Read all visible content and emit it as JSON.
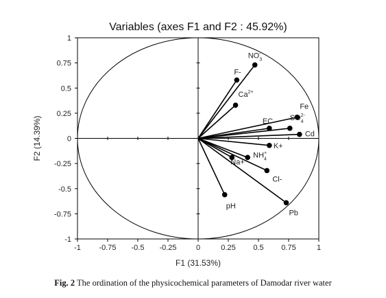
{
  "caption": {
    "prefix": "Fig. 2",
    "text": " The ordination of the physicochemical parameters of Damodar river water"
  },
  "chart_data": {
    "type": "scatter",
    "title": "Variables (axes F1 and F2 : 45.92%)",
    "xlabel": "F1 (31.53%)",
    "ylabel": "F2 (14.39%)",
    "xlim": [
      -1,
      1
    ],
    "ylim": [
      -1,
      1
    ],
    "xticks": [
      "-1",
      "-0.75",
      "-0.5",
      "-0.25",
      "0",
      "0.25",
      "0.5",
      "0.75",
      "1"
    ],
    "yticks": [
      "1",
      "0.75",
      "0.5",
      "0.25",
      "0",
      "-0.25",
      "-0.5",
      "-0.75",
      "-1"
    ],
    "correlation_circle": true,
    "grid": false,
    "points": [
      {
        "label": "NO",
        "sub": "3",
        "sup": "-",
        "x": 0.47,
        "y": 0.73
      },
      {
        "label": "F-",
        "x": 0.32,
        "y": 0.58
      },
      {
        "label": "Ca",
        "sup": "2+",
        "x": 0.31,
        "y": 0.33
      },
      {
        "label": "Fe",
        "x": 0.82,
        "y": 0.21
      },
      {
        "label": "SO",
        "sub": "4",
        "sup": "2-",
        "x": 0.76,
        "y": 0.1
      },
      {
        "label": "EC",
        "x": 0.59,
        "y": 0.1
      },
      {
        "label": "Cd",
        "x": 0.84,
        "y": 0.04
      },
      {
        "label": "K+",
        "x": 0.59,
        "y": -0.07
      },
      {
        "label": "NH",
        "sub": "4",
        "sup": "+",
        "x": 0.41,
        "y": -0.19
      },
      {
        "label": "Na+",
        "x": 0.28,
        "y": -0.19
      },
      {
        "label": "Cl-",
        "x": 0.57,
        "y": -0.32
      },
      {
        "label": "pH",
        "x": 0.22,
        "y": -0.56
      },
      {
        "label": "Pb",
        "x": 0.73,
        "y": -0.64
      }
    ]
  }
}
